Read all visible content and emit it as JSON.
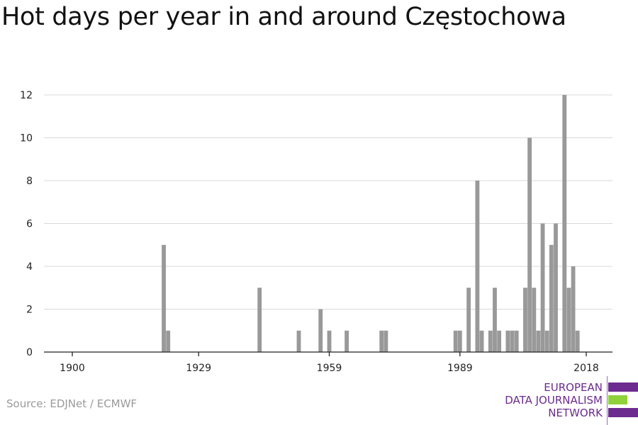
{
  "title": "Hot days per year in and around Częstochowa",
  "source": "Source: EDJNet / ECMWF",
  "logo": {
    "line1": "EUROPEAN",
    "line2": "DATA JOURNALISM",
    "line3": "NETWORK",
    "colors": {
      "purple": "#6b2b8f",
      "green": "#8fd13a"
    }
  },
  "chart_data": {
    "type": "bar",
    "bar_color": "#999999",
    "grid_color": "#d9d9d9",
    "grid": true,
    "xlim": [
      1900,
      2018
    ],
    "ylim": [
      0,
      12
    ],
    "x_ticks": [
      1900,
      1929,
      1959,
      1989,
      2018
    ],
    "y_ticks": [
      0,
      2,
      4,
      6,
      8,
      10,
      12
    ],
    "x": [
      1921,
      1922,
      1943,
      1952,
      1957,
      1959,
      1963,
      1971,
      1972,
      1988,
      1989,
      1991,
      1993,
      1994,
      1996,
      1997,
      1998,
      2000,
      2001,
      2002,
      2004,
      2005,
      2006,
      2007,
      2008,
      2009,
      2010,
      2011,
      2013,
      2014,
      2015,
      2016
    ],
    "values": [
      5,
      1,
      3,
      1,
      2,
      1,
      1,
      1,
      1,
      1,
      1,
      3,
      8,
      1,
      1,
      3,
      1,
      1,
      1,
      1,
      3,
      10,
      3,
      1,
      6,
      1,
      5,
      6,
      12,
      3,
      4,
      1
    ]
  }
}
